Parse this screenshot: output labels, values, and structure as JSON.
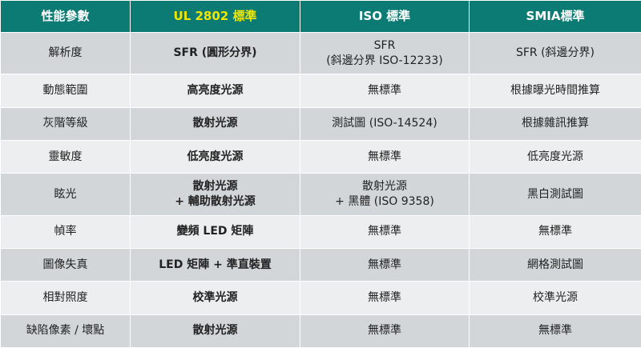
{
  "header": {
    "col1": "性能參數",
    "col2": "UL 2802 標準",
    "col3": "ISO 標準",
    "col4": "SMIA標準"
  },
  "rows": [
    {
      "param": "解析度",
      "ul": "SFR (圓形分界)",
      "iso": [
        "SFR",
        "(斜邊分界 ISO-12233)"
      ],
      "smia": "SFR (斜邊分界)"
    },
    {
      "param": "動態範圍",
      "ul": "高亮度光源",
      "iso": "無標準",
      "smia": "根據曝光時間推算"
    },
    {
      "param": "灰階等級",
      "ul": "散射光源",
      "iso": "測試圖 (ISO-14524)",
      "smia": "根據雜訊推算"
    },
    {
      "param": "靈敏度",
      "ul": "低亮度光源",
      "iso": "無標準",
      "smia": "低亮度光源"
    },
    {
      "param": "眩光",
      "ul": [
        "散射光源",
        "+ 輔助散射光源"
      ],
      "iso": [
        "散射光源",
        "+ 黑體 (ISO 9358)"
      ],
      "smia": "黑白測試圖"
    },
    {
      "param": "幀率",
      "ul": "變頻 LED 矩陣",
      "iso": "無標準",
      "smia": "無標準"
    },
    {
      "param": "圖像失真",
      "ul": "LED 矩陣 + 準直裝置",
      "iso": "無標準",
      "smia": "網格測試圖"
    },
    {
      "param": "相對照度",
      "ul": "校準光源",
      "iso": "無標準",
      "smia": "校準光源"
    },
    {
      "param": "缺陷像素 / 壞點",
      "ul": "散射光源",
      "iso": "無標準",
      "smia": "無標準"
    }
  ],
  "colors": {
    "header_bg": "#0b7b73",
    "header_highlight": "#f2e600",
    "row_dark": "#d2d6d9",
    "row_light": "#eceeef",
    "no_standard_text": "#a8722a"
  }
}
